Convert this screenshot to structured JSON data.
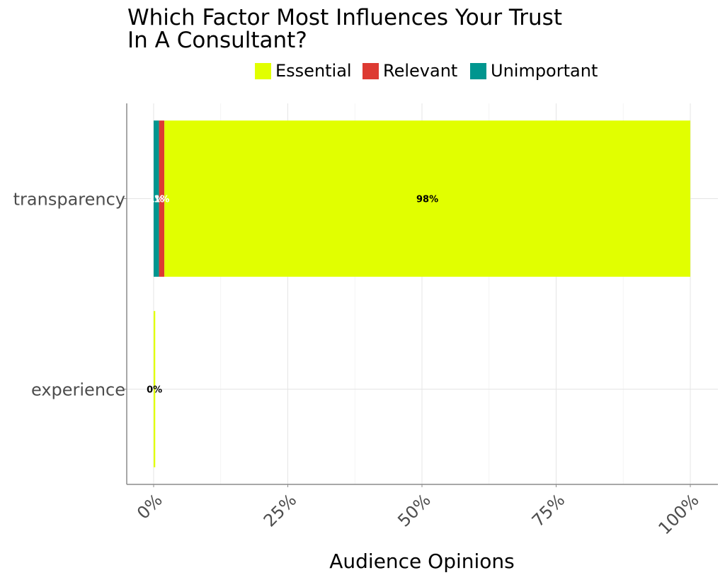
{
  "chart_data": {
    "type": "bar",
    "orientation": "horizontal",
    "stacked": true,
    "title_lines": [
      "Which Factor Most Influences Your Trust",
      "In A Consultant?"
    ],
    "xlabel": "Audience Opinions",
    "ylabel": "",
    "xlim": [
      0,
      100
    ],
    "x_ticks": [
      "0%",
      "25%",
      "50%",
      "75%",
      "100%"
    ],
    "x_tick_values": [
      0,
      25,
      50,
      75,
      100
    ],
    "categories": [
      "transparency",
      "experience"
    ],
    "legend_position": "top",
    "grid": true,
    "series": [
      {
        "name": "Unimportant",
        "color": "#00968f",
        "values": [
          1,
          0
        ],
        "labels": [
          "1%",
          ""
        ]
      },
      {
        "name": "Relevant",
        "color": "#dd3a32",
        "values": [
          1,
          0
        ],
        "labels": [
          "1%",
          ""
        ]
      },
      {
        "name": "Essential",
        "color": "#e1ff00",
        "values": [
          98,
          0.3
        ],
        "labels": [
          "98%",
          "0%"
        ]
      }
    ],
    "legend_order": [
      "Essential",
      "Relevant",
      "Unimportant"
    ]
  }
}
